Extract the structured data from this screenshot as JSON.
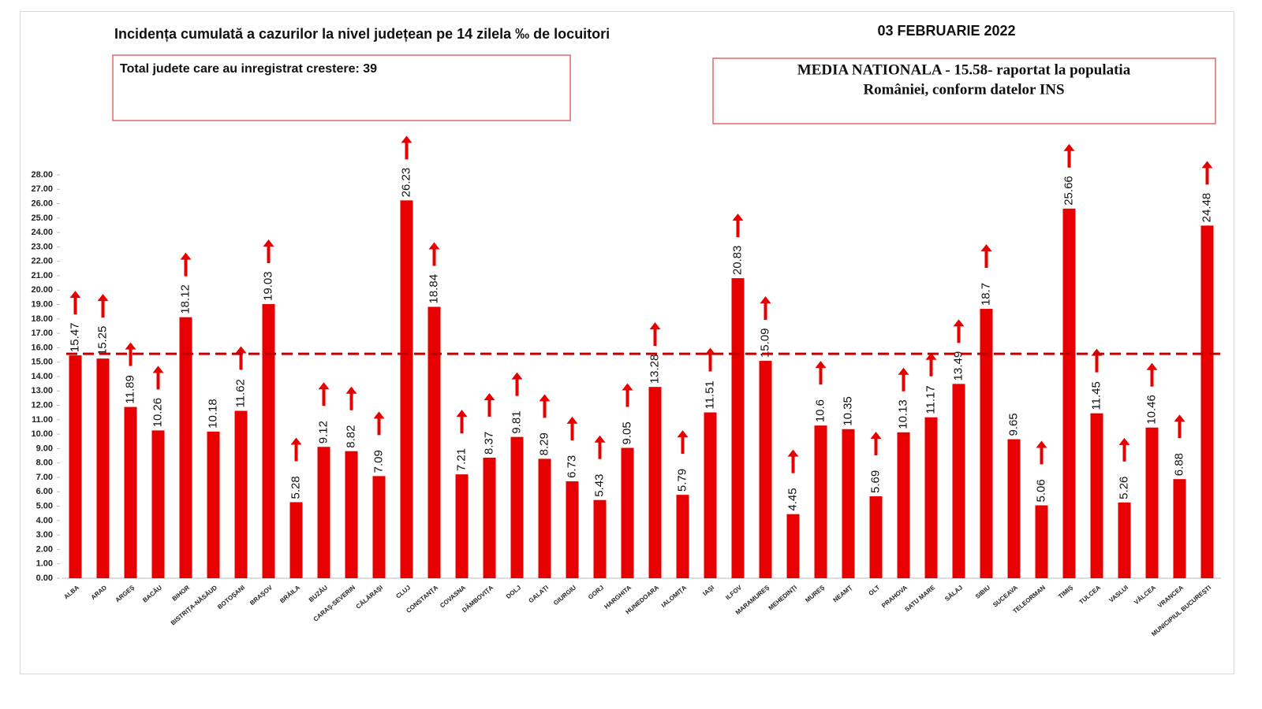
{
  "chart_data": {
    "type": "bar",
    "title": "Incidența cumulată a cazurilor la nivel județean pe 14 zilela ‰ de locuitori",
    "date": "03 FEBRUARIE 2022",
    "annotation_left": "Total judete care au inregistrat crestere: 39",
    "annotation_right": [
      "MEDIA NATIONALA - 15.58-  raportat la populatia",
      "României, conform datelor INS"
    ],
    "reference_line": 15.58,
    "categories": [
      "ALBA",
      "ARAD",
      "ARGEȘ",
      "BACĂU",
      "BIHOR",
      "BISTRIȚA-NĂSĂUD",
      "BOTOȘANI",
      "BRAȘOV",
      "BRĂILA",
      "BUZĂU",
      "CARAȘ-SEVERIN",
      "CĂLĂRAȘI",
      "CLUJ",
      "CONSTANȚA",
      "COVASNA",
      "DÂMBOVIȚA",
      "DOLJ",
      "GALAȚI",
      "GIURGIU",
      "GORJ",
      "HARGHITA",
      "HUNEDOARA",
      "IALOMIȚA",
      "IAȘI",
      "ILFOV",
      "MARAMUREȘ",
      "MEHEDINȚI",
      "MUREȘ",
      "NEAMȚ",
      "OLT",
      "PRAHOVA",
      "SATU MARE",
      "SĂLAJ",
      "SIBIU",
      "SUCEAVA",
      "TELEORMAN",
      "TIMIȘ",
      "TULCEA",
      "VASLUI",
      "VÂLCEA",
      "VRANCEA",
      "MUNICIPIUL BUCUREȘTI"
    ],
    "values": [
      15.47,
      15.25,
      11.89,
      10.26,
      18.12,
      10.18,
      11.62,
      19.03,
      5.28,
      9.12,
      8.82,
      7.09,
      26.23,
      18.84,
      7.21,
      8.37,
      9.81,
      8.29,
      6.73,
      5.43,
      9.05,
      13.28,
      5.79,
      11.51,
      20.83,
      15.09,
      4.45,
      10.6,
      10.35,
      5.69,
      10.13,
      11.17,
      13.49,
      18.7,
      9.65,
      5.06,
      25.66,
      11.45,
      5.26,
      10.46,
      6.88,
      24.48
    ],
    "increase": [
      true,
      true,
      true,
      true,
      true,
      false,
      true,
      true,
      true,
      true,
      true,
      true,
      true,
      true,
      true,
      true,
      true,
      true,
      true,
      true,
      true,
      true,
      true,
      true,
      true,
      true,
      true,
      true,
      false,
      true,
      true,
      true,
      true,
      true,
      false,
      true,
      true,
      true,
      true,
      true,
      true,
      true
    ],
    "color": "#e60000",
    "ylim": [
      0,
      28
    ],
    "yticks": [
      {
        "value": 0,
        "label": "0.00"
      },
      {
        "value": 1,
        "label": "1.00"
      },
      {
        "value": 2,
        "label": "2.00"
      },
      {
        "value": 3,
        "label": "3.00"
      },
      {
        "value": 4,
        "label": "4.00"
      },
      {
        "value": 5,
        "label": "5.00"
      },
      {
        "value": 6,
        "label": "6.00"
      },
      {
        "value": 7,
        "label": "7.00"
      },
      {
        "value": 8,
        "label": "8.00"
      },
      {
        "value": 9,
        "label": "9.00"
      },
      {
        "value": 10,
        "label": "10.00"
      },
      {
        "value": 11,
        "label": "11.00"
      },
      {
        "value": 12,
        "label": "12.00"
      },
      {
        "value": 13,
        "label": "13.00"
      },
      {
        "value": 14,
        "label": "14.00"
      },
      {
        "value": 15,
        "label": "15.00"
      },
      {
        "value": 16,
        "label": "16.00"
      },
      {
        "value": 17,
        "label": "17.00"
      },
      {
        "value": 18,
        "label": "18.00"
      },
      {
        "value": 19,
        "label": "19.00"
      },
      {
        "value": 20,
        "label": "20.00"
      },
      {
        "value": 21,
        "label": "21.00"
      },
      {
        "value": 22,
        "label": "22.00"
      },
      {
        "value": 23,
        "label": "23.00"
      },
      {
        "value": 24,
        "label": "24.00"
      },
      {
        "value": 25,
        "label": "25.00"
      },
      {
        "value": 26,
        "label": "26.00"
      },
      {
        "value": 27,
        "label": "27.00"
      },
      {
        "value": 28,
        "label": "28.00"
      }
    ],
    "grid": false
  }
}
